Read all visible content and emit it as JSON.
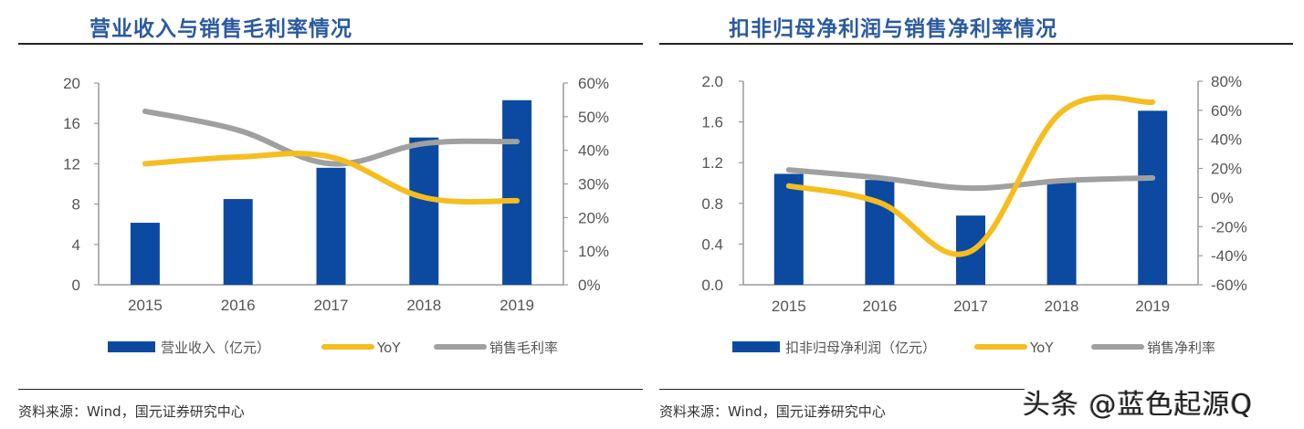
{
  "colors": {
    "bar": "#0b4aa0",
    "yoy": "#f5bd1f",
    "margin": "#a0a0a0",
    "axis": "#999999",
    "title": "#2a5aa0"
  },
  "watermark": "头条 @蓝色起源Q",
  "chart_data": [
    {
      "type": "bar",
      "title": "营业收入与销售毛利率情况",
      "categories": [
        "2015",
        "2016",
        "2017",
        "2018",
        "2019"
      ],
      "series": [
        {
          "name": "营业收入（亿元）",
          "type": "bar",
          "axis": "left",
          "values": [
            6.15,
            8.5,
            11.6,
            14.6,
            18.3
          ]
        },
        {
          "name": "YoY",
          "type": "line",
          "axis": "right",
          "values": [
            36,
            38,
            38,
            26,
            25
          ]
        },
        {
          "name": "销售毛利率",
          "type": "line",
          "axis": "right",
          "values": [
            51.6,
            46,
            36,
            42,
            42.6
          ]
        }
      ],
      "ylim": [
        0,
        20
      ],
      "yticks": [
        0,
        4,
        8,
        12,
        16,
        20
      ],
      "ytick_labels": [
        "0",
        "4",
        "8",
        "12",
        "16",
        "20"
      ],
      "y2lim": [
        0,
        60
      ],
      "y2ticks": [
        0,
        10,
        20,
        30,
        40,
        50,
        60
      ],
      "y2tick_labels": [
        "0%",
        "10%",
        "20%",
        "30%",
        "40%",
        "50%",
        "60%"
      ],
      "legend": "bottom",
      "source": "资料来源：Wind，国元证券研究中心"
    },
    {
      "type": "bar",
      "title": "扣非归母净利润与销售净利率情况",
      "categories": [
        "2015",
        "2016",
        "2017",
        "2018",
        "2019"
      ],
      "series": [
        {
          "name": "扣非归母净利润（亿元）",
          "type": "bar",
          "axis": "left",
          "values": [
            1.09,
            1.03,
            0.68,
            1.01,
            1.71
          ]
        },
        {
          "name": "YoY",
          "type": "line",
          "axis": "right",
          "values": [
            8,
            -3.5,
            -37,
            59,
            65.6
          ]
        },
        {
          "name": "销售净利率",
          "type": "line",
          "axis": "right",
          "values": [
            19,
            13.5,
            6.5,
            11.6,
            13.5
          ]
        }
      ],
      "ylim": [
        0,
        2.0
      ],
      "yticks": [
        0,
        0.4,
        0.8,
        1.2,
        1.6,
        2.0
      ],
      "ytick_labels": [
        "0.0",
        "0.4",
        "0.8",
        "1.2",
        "1.6",
        "2.0"
      ],
      "y2lim": [
        -60,
        80
      ],
      "y2ticks": [
        -60,
        -40,
        -20,
        0,
        20,
        40,
        60,
        80
      ],
      "y2tick_labels": [
        "-60%",
        "-40%",
        "-20%",
        "0%",
        "20%",
        "40%",
        "60%",
        "80%"
      ],
      "legend": "bottom",
      "source": "资料来源：Wind，国元证券研究中心"
    }
  ]
}
